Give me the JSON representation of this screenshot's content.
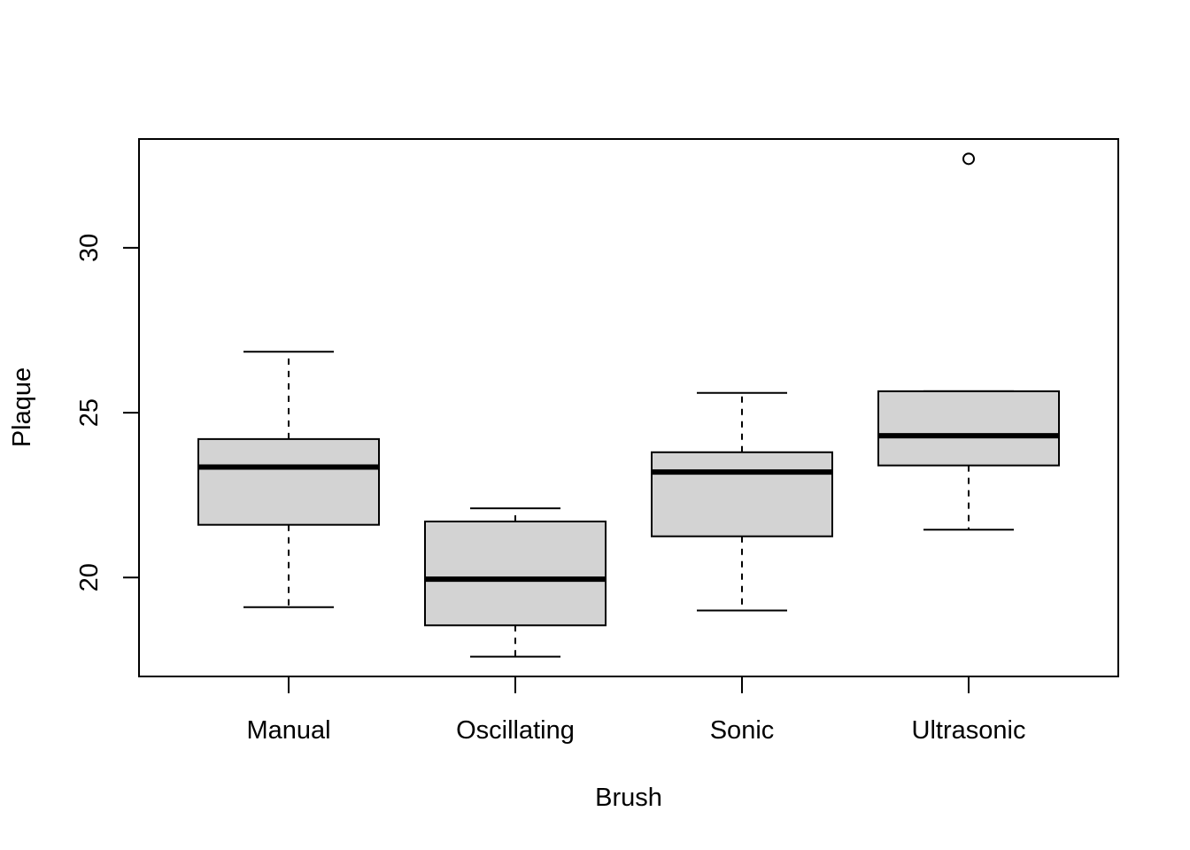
{
  "chart_data": {
    "type": "boxplot",
    "title": "",
    "xlabel": "Brush",
    "ylabel": "Plaque",
    "ylim": [
      17,
      33.3
    ],
    "yticks": [
      20,
      25,
      30
    ],
    "grid": false,
    "legend": "none",
    "box_fill": "#d3d3d3",
    "categories": [
      "Manual",
      "Oscillating",
      "Sonic",
      "Ultrasonic"
    ],
    "boxes": [
      {
        "category": "Manual",
        "lower_whisker": 19.1,
        "q1": 21.6,
        "median": 23.35,
        "q3": 24.2,
        "upper_whisker": 26.85,
        "outliers": []
      },
      {
        "category": "Oscillating",
        "lower_whisker": 17.6,
        "q1": 18.55,
        "median": 19.95,
        "q3": 21.7,
        "upper_whisker": 22.1,
        "outliers": []
      },
      {
        "category": "Sonic",
        "lower_whisker": 19.0,
        "q1": 21.25,
        "median": 23.2,
        "q3": 23.8,
        "upper_whisker": 25.6,
        "outliers": []
      },
      {
        "category": "Ultrasonic",
        "lower_whisker": 21.45,
        "q1": 23.4,
        "median": 24.3,
        "q3": 25.65,
        "upper_whisker": 25.65,
        "outliers": [
          32.7
        ]
      }
    ]
  }
}
